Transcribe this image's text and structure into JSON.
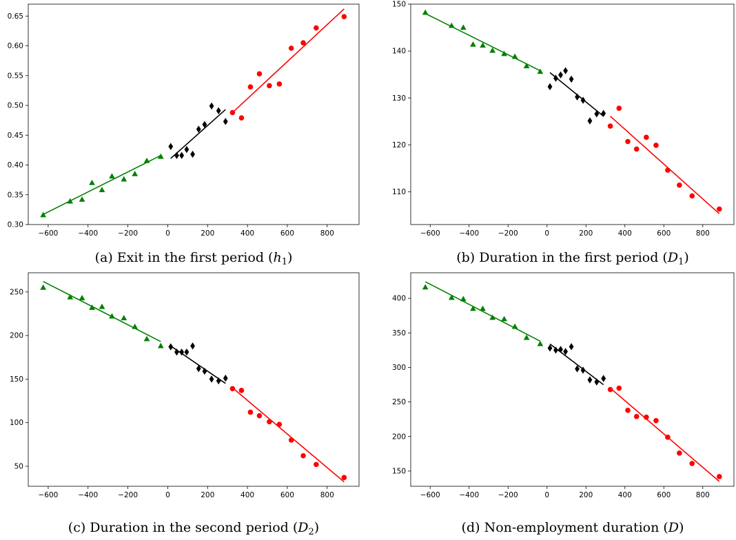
{
  "chart_data": [
    {
      "type": "scatter",
      "panel": "a",
      "caption": "(a) Exit in the first period (",
      "caption_math": "h",
      "caption_sub": "1",
      "xlim": [
        -700,
        960
      ],
      "ylim": [
        0.3,
        0.67
      ],
      "xticks": [
        -600,
        -400,
        -200,
        0,
        200,
        400,
        600,
        800
      ],
      "yticks": [
        0.3,
        0.35,
        0.4,
        0.45,
        0.5,
        0.55,
        0.6,
        0.65
      ],
      "ytick_labels": [
        "0.30",
        "0.35",
        "0.40",
        "0.45",
        "0.50",
        "0.55",
        "0.60",
        "0.65"
      ],
      "series": [
        {
          "color": "#008000",
          "marker": "triangle",
          "x": [
            -625,
            -490,
            -430,
            -380,
            -330,
            -280,
            -220,
            -165,
            -105,
            -35
          ],
          "y": [
            0.316,
            0.339,
            0.342,
            0.37,
            0.358,
            0.381,
            0.376,
            0.385,
            0.407,
            0.414
          ],
          "fit": [
            [
              -625,
              0.317
            ],
            [
              -35,
              0.416
            ]
          ]
        },
        {
          "color": "#000000",
          "marker": "diamond",
          "x": [
            15,
            45,
            70,
            95,
            125,
            155,
            185,
            220,
            255,
            290
          ],
          "y": [
            0.431,
            0.416,
            0.416,
            0.426,
            0.418,
            0.46,
            0.468,
            0.499,
            0.491,
            0.473
          ],
          "fit": [
            [
              15,
              0.411
            ],
            [
              290,
              0.493
            ]
          ]
        },
        {
          "color": "#ff0000",
          "marker": "circle",
          "x": [
            325,
            370,
            415,
            460,
            510,
            560,
            620,
            680,
            745,
            885
          ],
          "y": [
            0.488,
            0.479,
            0.531,
            0.553,
            0.533,
            0.536,
            0.596,
            0.605,
            0.63,
            0.649
          ],
          "fit": [
            [
              325,
              0.488
            ],
            [
              885,
              0.662
            ]
          ]
        }
      ]
    },
    {
      "type": "scatter",
      "panel": "b",
      "caption": "(b) Duration in the first period (",
      "caption_math": "D",
      "caption_sub": "1",
      "xlim": [
        -700,
        960
      ],
      "ylim": [
        103,
        150
      ],
      "xticks": [
        -600,
        -400,
        -200,
        0,
        200,
        400,
        600,
        800
      ],
      "yticks": [
        110,
        120,
        130,
        140,
        150
      ],
      "ytick_labels": [
        "110",
        "120",
        "130",
        "140",
        "150"
      ],
      "series": [
        {
          "color": "#008000",
          "marker": "triangle",
          "x": [
            -625,
            -490,
            -430,
            -380,
            -330,
            -280,
            -220,
            -165,
            -105,
            -35
          ],
          "y": [
            148.2,
            145.4,
            145.0,
            141.4,
            141.2,
            140.1,
            139.4,
            138.8,
            136.8,
            135.6
          ],
          "fit": [
            [
              -625,
              148.0
            ],
            [
              -35,
              135.8
            ]
          ]
        },
        {
          "color": "#000000",
          "marker": "diamond",
          "x": [
            15,
            45,
            70,
            95,
            125,
            155,
            185,
            220,
            255,
            290
          ],
          "y": [
            132.4,
            134.2,
            134.9,
            135.8,
            134.0,
            130.2,
            129.5,
            125.1,
            126.6,
            126.7
          ],
          "fit": [
            [
              15,
              135.4
            ],
            [
              290,
              126.1
            ]
          ]
        },
        {
          "color": "#ff0000",
          "marker": "circle",
          "x": [
            325,
            370,
            415,
            460,
            510,
            560,
            620,
            680,
            745,
            885
          ],
          "y": [
            124.0,
            127.8,
            120.7,
            119.1,
            121.6,
            119.9,
            114.6,
            111.4,
            109.1,
            106.3
          ],
          "fit": [
            [
              325,
              126.1
            ],
            [
              885,
              105.3
            ]
          ]
        }
      ]
    },
    {
      "type": "scatter",
      "panel": "c",
      "caption": "(c) Duration in the second period (",
      "caption_math": "D",
      "caption_sub": "2",
      "xlim": [
        -700,
        960
      ],
      "ylim": [
        27,
        272
      ],
      "xticks": [
        -600,
        -400,
        -200,
        0,
        200,
        400,
        600,
        800
      ],
      "yticks": [
        50,
        100,
        150,
        200,
        250
      ],
      "ytick_labels": [
        "50",
        "100",
        "150",
        "200",
        "250"
      ],
      "series": [
        {
          "color": "#008000",
          "marker": "triangle",
          "x": [
            -625,
            -490,
            -430,
            -380,
            -330,
            -280,
            -220,
            -165,
            -105,
            -35
          ],
          "y": [
            255,
            244,
            243,
            232,
            233,
            222,
            220,
            210,
            196,
            188
          ],
          "fit": [
            [
              -625,
              262
            ],
            [
              -35,
              193
            ]
          ]
        },
        {
          "color": "#000000",
          "marker": "diamond",
          "x": [
            15,
            45,
            70,
            95,
            125,
            155,
            185,
            220,
            255,
            290
          ],
          "y": [
            187,
            181,
            181,
            181,
            188,
            162,
            159,
            150,
            148,
            151
          ],
          "fit": [
            [
              15,
              188
            ],
            [
              290,
              145
            ]
          ]
        },
        {
          "color": "#ff0000",
          "marker": "circle",
          "x": [
            325,
            370,
            415,
            460,
            510,
            560,
            620,
            680,
            745,
            885
          ],
          "y": [
            139,
            137,
            112,
            108,
            101,
            98,
            80,
            62,
            52,
            37
          ],
          "fit": [
            [
              325,
              140
            ],
            [
              885,
              32
            ]
          ]
        }
      ]
    },
    {
      "type": "scatter",
      "panel": "d",
      "caption": "(d) Non-employment duration (",
      "caption_math": "D",
      "caption_sub": "",
      "xlim": [
        -700,
        960
      ],
      "ylim": [
        128,
        437
      ],
      "xticks": [
        -600,
        -400,
        -200,
        0,
        200,
        400,
        600,
        800
      ],
      "yticks": [
        150,
        200,
        250,
        300,
        350,
        400
      ],
      "ytick_labels": [
        "150",
        "200",
        "250",
        "300",
        "350",
        "400"
      ],
      "series": [
        {
          "color": "#008000",
          "marker": "triangle",
          "x": [
            -625,
            -490,
            -430,
            -380,
            -330,
            -280,
            -220,
            -165,
            -105,
            -35
          ],
          "y": [
            416,
            401,
            399,
            385,
            385,
            372,
            370,
            359,
            343,
            334
          ],
          "fit": [
            [
              -625,
              424
            ],
            [
              -35,
              338
            ]
          ]
        },
        {
          "color": "#000000",
          "marker": "diamond",
          "x": [
            15,
            45,
            70,
            95,
            125,
            155,
            185,
            220,
            255,
            290
          ],
          "y": [
            328,
            325,
            326,
            323,
            330,
            298,
            296,
            282,
            279,
            284
          ],
          "fit": [
            [
              15,
              334
            ],
            [
              290,
              275
            ]
          ]
        },
        {
          "color": "#ff0000",
          "marker": "circle",
          "x": [
            325,
            370,
            415,
            460,
            510,
            560,
            620,
            680,
            745,
            885
          ],
          "y": [
            268,
            270,
            238,
            229,
            228,
            223,
            199,
            176,
            161,
            142
          ],
          "fit": [
            [
              325,
              270
            ],
            [
              885,
              135
            ]
          ]
        }
      ]
    }
  ]
}
